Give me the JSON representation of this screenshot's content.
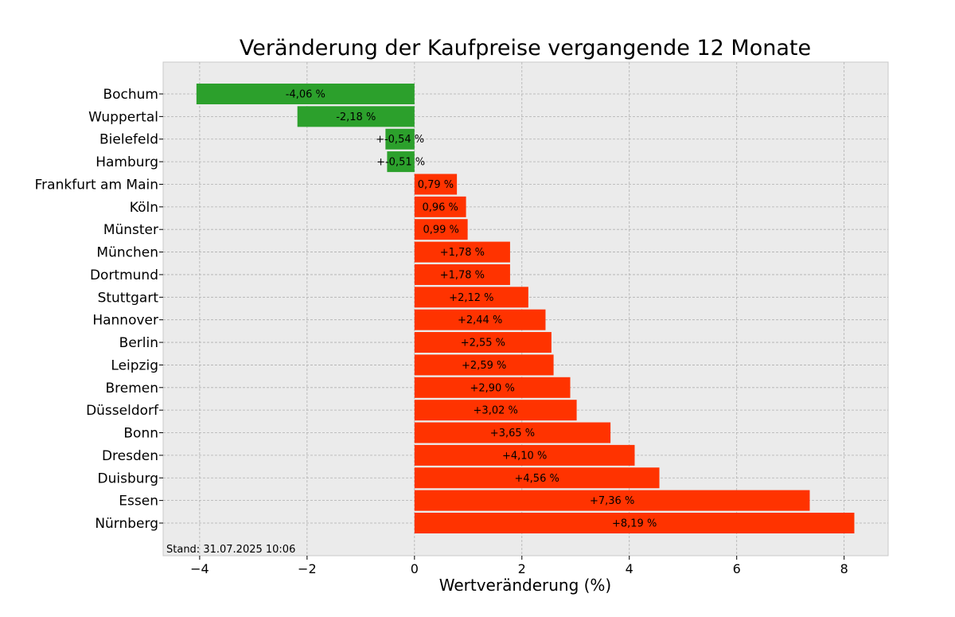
{
  "chart_data": {
    "type": "bar",
    "orientation": "horizontal",
    "title": "Veränderung der Kaufpreise vergangende 12 Monate",
    "xlabel": "Wertveränderung (%)",
    "ylabel": "",
    "xlim": [
      -4.68,
      8.82
    ],
    "xticks": [
      -4,
      -2,
      0,
      2,
      4,
      6,
      8
    ],
    "xtick_labels": [
      "−4",
      "−2",
      "0",
      "2",
      "4",
      "6",
      "8"
    ],
    "grid": true,
    "colors": {
      "positive": "#ff3300",
      "negative": "#2ca02c",
      "background": "#ebebeb",
      "grid": "#b0b0b0"
    },
    "categories": [
      "Bochum",
      "Wuppertal",
      "Bielefeld",
      "Hamburg",
      "Frankfurt am Main",
      "Köln",
      "Münster",
      "München",
      "Dortmund",
      "Stuttgart",
      "Hannover",
      "Berlin",
      "Leipzig",
      "Bremen",
      "Düsseldorf",
      "Bonn",
      "Dresden",
      "Duisburg",
      "Essen",
      "Nürnberg"
    ],
    "values": [
      -4.06,
      -2.18,
      -0.54,
      -0.51,
      0.79,
      0.96,
      0.99,
      1.78,
      1.78,
      2.12,
      2.44,
      2.55,
      2.59,
      2.9,
      3.02,
      3.65,
      4.1,
      4.56,
      7.36,
      8.19
    ],
    "data_labels": [
      "-4,06 %",
      "-2,18 %",
      "+-0,54 %",
      "+-0,51 %",
      "0,79 %",
      "0,96 %",
      "0,99 %",
      "+1,78 %",
      "+1,78 %",
      "+2,12 %",
      "+2,44 %",
      "+2,55 %",
      "+2,59 %",
      "+2,90 %",
      "+3,02 %",
      "+3,65 %",
      "+4,10 %",
      "+4,56 %",
      "+7,36 %",
      "+8,19 %"
    ],
    "annotation": "Stand: 31.07.2025 10:06"
  }
}
